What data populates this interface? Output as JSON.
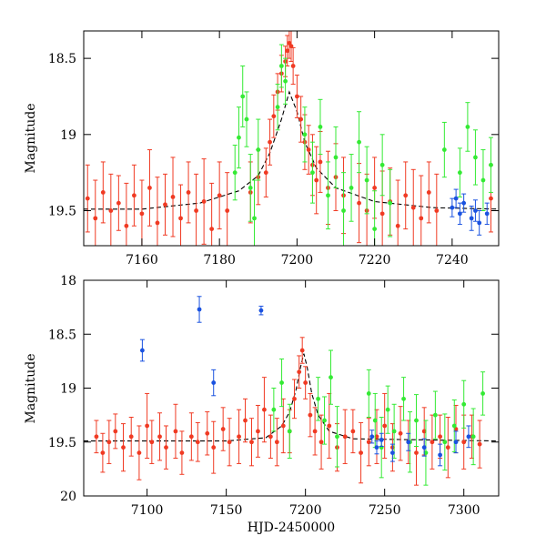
{
  "chart_data": [
    {
      "type": "scatter",
      "panel": "top",
      "xlabel": "",
      "ylabel": "Magnitude",
      "xlim": [
        7145,
        7252
      ],
      "ylim": [
        19.73,
        18.32
      ],
      "y_inverted": true,
      "xticks": [
        7160,
        7180,
        7200,
        7220,
        7240
      ],
      "xtick_labels": [
        "7160",
        "7180",
        "7200",
        "7220",
        "7240"
      ],
      "yticks": [
        18.5,
        19,
        19.5
      ],
      "ytick_labels": [
        "18.5",
        "19",
        "19.5"
      ],
      "series": [
        {
          "name": "red",
          "color": "#f03a23",
          "errorbars": true,
          "x": [
            7146,
            7148,
            7150,
            7152,
            7154,
            7156,
            7158,
            7160,
            7162,
            7164,
            7166,
            7168,
            7170,
            7172,
            7174,
            7176,
            7178,
            7180,
            7182,
            7188,
            7190,
            7192,
            7193,
            7194,
            7195,
            7196,
            7197,
            7197.5,
            7198,
            7198.5,
            7199,
            7200,
            7201,
            7202,
            7203,
            7204,
            7205,
            7206,
            7208,
            7210,
            7212,
            7216,
            7218,
            7220,
            7222,
            7224,
            7226,
            7228,
            7230,
            7232,
            7234,
            7236,
            7250
          ],
          "y": [
            19.42,
            19.55,
            19.38,
            19.5,
            19.45,
            19.6,
            19.4,
            19.52,
            19.35,
            19.58,
            19.46,
            19.41,
            19.55,
            19.38,
            19.5,
            19.44,
            19.62,
            19.4,
            19.5,
            19.38,
            19.28,
            19.25,
            19.05,
            18.88,
            18.72,
            18.6,
            18.52,
            18.45,
            18.4,
            18.42,
            18.55,
            18.75,
            18.9,
            19.05,
            19.1,
            19.2,
            19.3,
            19.18,
            19.35,
            19.28,
            19.4,
            19.45,
            19.5,
            19.35,
            19.52,
            19.44,
            19.6,
            19.4,
            19.48,
            19.55,
            19.38,
            19.5,
            19.42
          ],
          "err": [
            0.22,
            0.25,
            0.2,
            0.24,
            0.18,
            0.28,
            0.2,
            0.22,
            0.25,
            0.3,
            0.2,
            0.26,
            0.22,
            0.2,
            0.24,
            0.28,
            0.3,
            0.22,
            0.25,
            0.2,
            0.18,
            0.16,
            0.15,
            0.14,
            0.12,
            0.12,
            0.1,
            0.1,
            0.1,
            0.1,
            0.12,
            0.14,
            0.15,
            0.18,
            0.16,
            0.2,
            0.22,
            0.2,
            0.24,
            0.22,
            0.25,
            0.26,
            0.24,
            0.2,
            0.28,
            0.22,
            0.3,
            0.22,
            0.25,
            0.28,
            0.2,
            0.24,
            0.22
          ]
        },
        {
          "name": "green",
          "color": "#34ea34",
          "errorbars": true,
          "x": [
            7184,
            7185,
            7186,
            7187,
            7188,
            7189,
            7190,
            7195,
            7196,
            7197,
            7202,
            7204,
            7206,
            7208,
            7210,
            7212,
            7214,
            7216,
            7218,
            7220,
            7222,
            7224,
            7238,
            7242,
            7244,
            7246,
            7248,
            7250
          ],
          "y": [
            19.25,
            19.02,
            18.75,
            18.9,
            19.35,
            19.55,
            19.1,
            18.82,
            18.55,
            18.65,
            19.0,
            19.25,
            18.95,
            19.4,
            19.15,
            19.5,
            19.35,
            19.05,
            19.3,
            19.62,
            19.2,
            19.45,
            19.1,
            19.25,
            18.95,
            19.15,
            19.3,
            19.2
          ],
          "err": [
            0.18,
            0.2,
            0.2,
            0.18,
            0.22,
            0.25,
            0.2,
            0.15,
            0.14,
            0.15,
            0.18,
            0.2,
            0.18,
            0.22,
            0.2,
            0.25,
            0.22,
            0.2,
            0.22,
            0.25,
            0.2,
            0.22,
            0.18,
            0.16,
            0.16,
            0.18,
            0.2,
            0.18
          ]
        },
        {
          "name": "blue",
          "color": "#1a52e0",
          "errorbars": true,
          "x": [
            7240,
            7241,
            7242,
            7243,
            7245,
            7246,
            7247,
            7249
          ],
          "y": [
            19.48,
            19.42,
            19.52,
            19.45,
            19.55,
            19.5,
            19.58,
            19.52
          ],
          "err": [
            0.06,
            0.06,
            0.07,
            0.06,
            0.08,
            0.07,
            0.08,
            0.07
          ]
        },
        {
          "name": "model",
          "color": "#000000",
          "kind": "line",
          "x": [
            7145,
            7160,
            7175,
            7185,
            7190,
            7193,
            7196,
            7198,
            7200,
            7202,
            7205,
            7210,
            7220,
            7235,
            7252
          ],
          "y": [
            19.49,
            19.49,
            19.45,
            19.37,
            19.27,
            19.12,
            18.9,
            18.72,
            18.85,
            19.05,
            19.22,
            19.35,
            19.44,
            19.48,
            19.49
          ]
        }
      ]
    },
    {
      "type": "scatter",
      "panel": "bottom",
      "xlabel": "HJD-2450000",
      "ylabel": "Magnitude",
      "xlim": [
        7060,
        7322
      ],
      "ylim": [
        20,
        18
      ],
      "y_inverted": true,
      "xticks": [
        7100,
        7150,
        7200,
        7250,
        7300
      ],
      "xtick_labels": [
        "7100",
        "7150",
        "7200",
        "7250",
        "7300"
      ],
      "yticks": [
        18,
        18.5,
        19,
        19.5,
        20
      ],
      "ytick_labels": [
        "18",
        "18.5",
        "19",
        "19.5",
        "20"
      ],
      "series": [
        {
          "name": "red",
          "color": "#f03a23",
          "errorbars": true,
          "x": [
            7068,
            7072,
            7076,
            7080,
            7085,
            7090,
            7095,
            7100,
            7103,
            7108,
            7112,
            7118,
            7122,
            7128,
            7132,
            7138,
            7142,
            7148,
            7152,
            7158,
            7162,
            7166,
            7170,
            7174,
            7178,
            7182,
            7186,
            7190,
            7193,
            7196,
            7198,
            7200,
            7203,
            7206,
            7210,
            7215,
            7220,
            7225,
            7230,
            7235,
            7240,
            7245,
            7250,
            7255,
            7260,
            7265,
            7270,
            7275,
            7280,
            7285,
            7290,
            7295,
            7300,
            7305,
            7310
          ],
          "y": [
            19.45,
            19.6,
            19.5,
            19.4,
            19.55,
            19.45,
            19.6,
            19.35,
            19.5,
            19.45,
            19.55,
            19.4,
            19.6,
            19.45,
            19.5,
            19.42,
            19.55,
            19.38,
            19.5,
            19.45,
            19.3,
            19.5,
            19.4,
            19.2,
            19.45,
            19.5,
            19.35,
            19.4,
            19.1,
            18.85,
            18.65,
            18.95,
            19.25,
            19.4,
            19.5,
            19.35,
            19.55,
            19.45,
            19.4,
            19.6,
            19.5,
            19.45,
            19.35,
            19.55,
            19.42,
            19.5,
            19.6,
            19.4,
            19.5,
            19.45,
            19.55,
            19.38,
            19.5,
            19.45,
            19.52
          ],
          "err": [
            0.15,
            0.18,
            0.2,
            0.16,
            0.22,
            0.18,
            0.25,
            0.3,
            0.2,
            0.22,
            0.2,
            0.25,
            0.2,
            0.22,
            0.18,
            0.2,
            0.24,
            0.2,
            0.22,
            0.25,
            0.2,
            0.22,
            0.24,
            0.3,
            0.2,
            0.22,
            0.25,
            0.2,
            0.18,
            0.15,
            0.12,
            0.15,
            0.2,
            0.22,
            0.25,
            0.3,
            0.22,
            0.25,
            0.2,
            0.28,
            0.22,
            0.25,
            0.3,
            0.22,
            0.25,
            0.2,
            0.3,
            0.22,
            0.25,
            0.2,
            0.28,
            0.22,
            0.25,
            0.2,
            0.22
          ]
        },
        {
          "name": "green",
          "color": "#34ea34",
          "errorbars": true,
          "x": [
            7180,
            7185,
            7190,
            7208,
            7212,
            7216,
            7220,
            7240,
            7244,
            7248,
            7252,
            7256,
            7262,
            7266,
            7270,
            7276,
            7282,
            7288,
            7294,
            7300,
            7306,
            7312
          ],
          "y": [
            19.2,
            18.95,
            19.4,
            19.1,
            19.3,
            18.9,
            19.45,
            19.05,
            19.3,
            19.55,
            19.2,
            19.4,
            19.1,
            19.5,
            19.3,
            19.6,
            19.25,
            19.5,
            19.35,
            19.15,
            19.45,
            19.05
          ],
          "err": [
            0.2,
            0.22,
            0.25,
            0.2,
            0.22,
            0.25,
            0.28,
            0.22,
            0.25,
            0.28,
            0.22,
            0.25,
            0.2,
            0.28,
            0.24,
            0.3,
            0.22,
            0.26,
            0.24,
            0.22,
            0.26,
            0.2
          ]
        },
        {
          "name": "blue",
          "color": "#1a52e0",
          "errorbars": true,
          "x": [
            7097,
            7133,
            7142,
            7172,
            7242,
            7245,
            7248,
            7255,
            7265,
            7275,
            7285,
            7295,
            7303
          ],
          "y": [
            18.65,
            18.27,
            18.95,
            18.28,
            19.45,
            19.55,
            19.48,
            19.6,
            19.5,
            19.55,
            19.62,
            19.5,
            19.45
          ],
          "err": [
            0.1,
            0.12,
            0.12,
            0.04,
            0.06,
            0.06,
            0.06,
            0.08,
            0.08,
            0.08,
            0.1,
            0.1,
            0.1
          ]
        },
        {
          "name": "model",
          "color": "#000000",
          "kind": "line",
          "x": [
            7060,
            7150,
            7175,
            7185,
            7190,
            7194,
            7197,
            7199,
            7201,
            7204,
            7208,
            7215,
            7230,
            7322
          ],
          "y": [
            19.49,
            19.49,
            19.46,
            19.35,
            19.22,
            19.02,
            18.8,
            18.68,
            18.8,
            19.05,
            19.25,
            19.4,
            19.47,
            19.49
          ]
        }
      ]
    }
  ]
}
